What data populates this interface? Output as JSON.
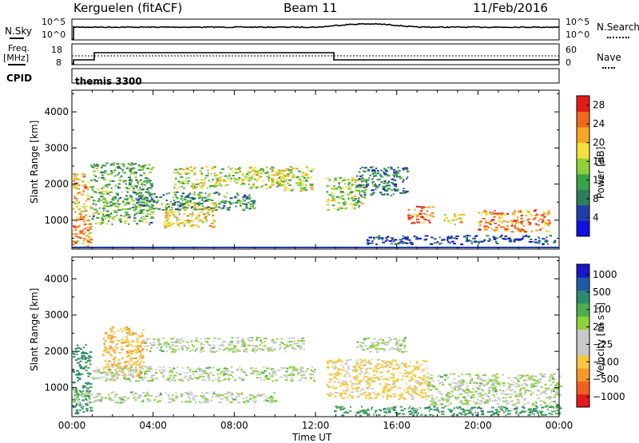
{
  "header": {
    "station": "Kerguelen (fitACF)",
    "beam": "Beam 11",
    "date": "11/Feb/2016"
  },
  "panels": {
    "nsky_label": "N.Sky",
    "nsearch_label": "N.Search",
    "noise_ticks_left": [
      "10^5",
      "10^0"
    ],
    "noise_ticks_right": [
      "10^5",
      "10^0"
    ],
    "freq_label_1": "Freq.",
    "freq_label_2": "[MHz]",
    "freq_ticks": [
      "18",
      "8"
    ],
    "nave_label": "Nave",
    "nave_ticks": [
      "60",
      "0"
    ],
    "cpid_label": "CPID",
    "cpid_value": "themis 3300"
  },
  "colors": {
    "power": [
      "#1010e0",
      "#1f3fa8",
      "#2e7d5a",
      "#3aa345",
      "#8fd13a",
      "#f2e13c",
      "#f5a623",
      "#f06a1e",
      "#e41a1a"
    ],
    "velocity": [
      "#e41a1a",
      "#f0601e",
      "#f59a2a",
      "#f5c842",
      "#c8c8c8",
      "#c8c8c8",
      "#8ed23c",
      "#4fae4b",
      "#2c8a6e",
      "#1f5aa8",
      "#1818c8"
    ],
    "ground_scatter": "#c8c8c8"
  },
  "chart_data": [
    {
      "type": "heatmap",
      "name": "power",
      "xlabel": "",
      "ylabel": "Slant Range [km]",
      "xlim_hours": [
        0,
        24
      ],
      "ylim_km": [
        200,
        4600
      ],
      "x_ticks": [
        "00:00",
        "04:00",
        "08:00",
        "12:00",
        "16:00",
        "20:00",
        "00:00"
      ],
      "y_ticks": [
        1000,
        2000,
        3000,
        4000
      ],
      "colorbar": {
        "label": "Power [dB]",
        "ticks": [
          4,
          8,
          12,
          16,
          20,
          24,
          28
        ],
        "range": [
          0,
          30
        ]
      },
      "regions": [
        {
          "t0": 0.0,
          "t1": 0.9,
          "r0": 250,
          "r1": 2300,
          "level": 22
        },
        {
          "t0": 0.9,
          "t1": 4.0,
          "r0": 900,
          "r1": 2600,
          "level": 12
        },
        {
          "t0": 4.5,
          "t1": 7.0,
          "r0": 800,
          "r1": 1500,
          "level": 20
        },
        {
          "t0": 5.0,
          "t1": 10.5,
          "r0": 1900,
          "r1": 2500,
          "level": 16
        },
        {
          "t0": 3.0,
          "t1": 9.0,
          "r0": 1300,
          "r1": 1800,
          "level": 10
        },
        {
          "t0": 10.0,
          "t1": 11.8,
          "r0": 1800,
          "r1": 2500,
          "level": 17
        },
        {
          "t0": 12.5,
          "t1": 14.5,
          "r0": 1300,
          "r1": 2200,
          "level": 15
        },
        {
          "t0": 14.0,
          "t1": 16.5,
          "r0": 1700,
          "r1": 2500,
          "level": 8
        },
        {
          "t0": 16.5,
          "t1": 17.8,
          "r0": 900,
          "r1": 1400,
          "level": 25
        },
        {
          "t0": 18.3,
          "t1": 19.2,
          "r0": 900,
          "r1": 1200,
          "level": 20
        },
        {
          "t0": 20.0,
          "t1": 23.5,
          "r0": 700,
          "r1": 1300,
          "level": 23
        },
        {
          "t0": 14.5,
          "t1": 23.8,
          "r0": 350,
          "r1": 600,
          "level": 5
        }
      ]
    },
    {
      "type": "heatmap",
      "name": "velocity",
      "xlabel": "Time UT",
      "ylabel": "Slant Range [km]",
      "xlim_hours": [
        0,
        24
      ],
      "ylim_km": [
        200,
        4600
      ],
      "x_ticks": [
        "00:00",
        "04:00",
        "08:00",
        "12:00",
        "16:00",
        "20:00",
        "00:00"
      ],
      "y_ticks": [
        1000,
        2000,
        3000,
        4000
      ],
      "colorbar": {
        "label": "Velocity [m s⁻¹]",
        "ticks": [
          "1000",
          "500",
          "100",
          "25",
          "−25",
          "−100",
          "−500",
          "−1000"
        ]
      },
      "regions": [
        {
          "t0": 0.0,
          "t1": 0.9,
          "r0": 300,
          "r1": 2200,
          "vel": 200
        },
        {
          "t0": 1.5,
          "t1": 3.5,
          "r0": 1300,
          "r1": 2700,
          "vel": -400
        },
        {
          "t0": 0.9,
          "t1": 12.0,
          "r0": 1200,
          "r1": 1600,
          "vel": 0
        },
        {
          "t0": 3.5,
          "t1": 11.5,
          "r0": 2000,
          "r1": 2400,
          "vel": 0
        },
        {
          "t0": 0.0,
          "t1": 10.0,
          "r0": 600,
          "r1": 900,
          "vel": 0
        },
        {
          "t0": 12.5,
          "t1": 17.5,
          "r0": 700,
          "r1": 1800,
          "vel": -200
        },
        {
          "t0": 14.0,
          "t1": 16.5,
          "r0": 2000,
          "r1": 2400,
          "vel": 0
        },
        {
          "t0": 17.5,
          "t1": 24.0,
          "r0": 500,
          "r1": 1400,
          "vel": 0
        },
        {
          "t0": 12.5,
          "t1": 24.0,
          "r0": 250,
          "r1": 500,
          "vel": 120
        }
      ]
    }
  ]
}
